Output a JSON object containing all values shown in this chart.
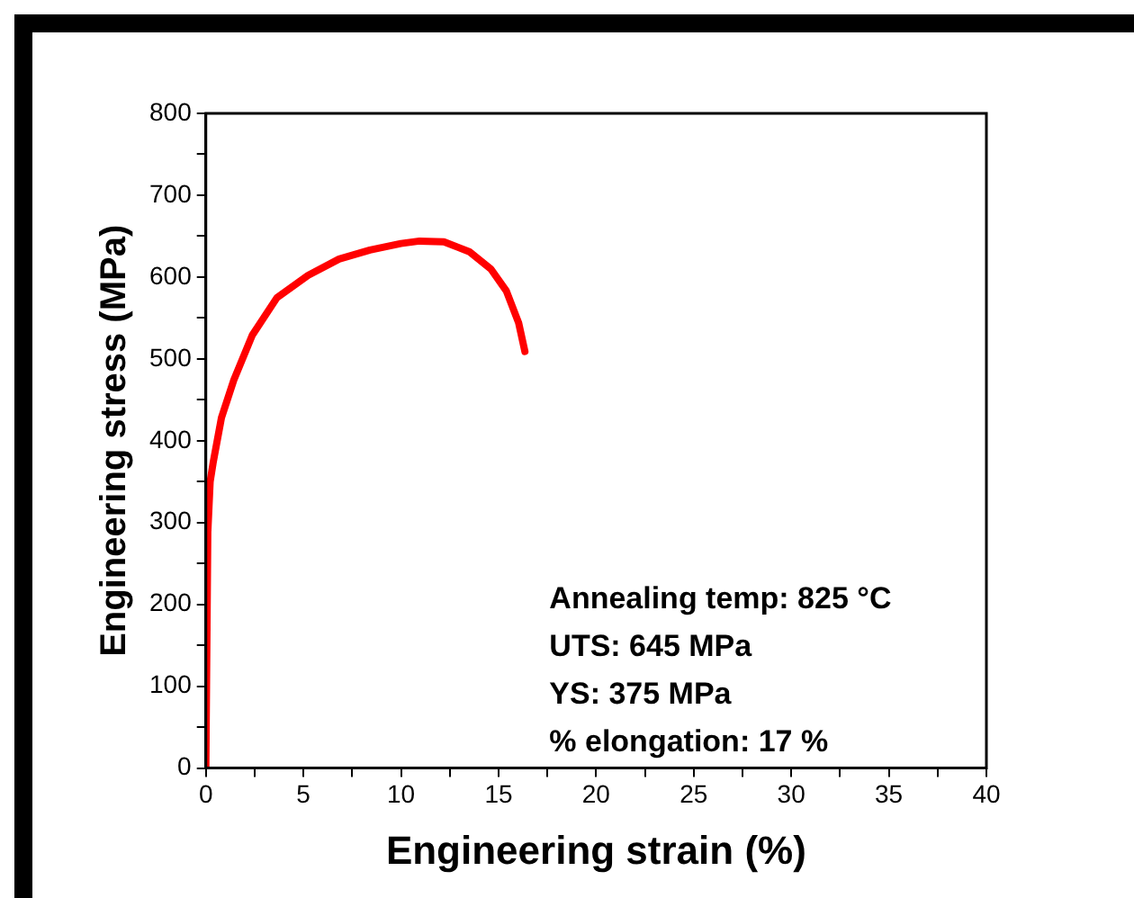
{
  "chart_data": {
    "type": "line",
    "xlabel": "Engineering strain (%)",
    "ylabel": "Engineering stress (MPa)",
    "x": [
      0,
      0.1,
      0.22,
      0.38,
      0.8,
      1.43,
      2.38,
      3.65,
      5.24,
      6.83,
      8.41,
      10,
      10.95,
      12.2,
      13.5,
      14.6,
      15.4,
      16.03,
      16.35
    ],
    "series": [
      {
        "color": "#ff0000",
        "values": [
          0,
          288,
          350,
          374,
          428,
          474,
          529,
          575,
          602,
          622,
          633,
          641,
          644,
          643,
          631,
          610,
          583,
          544,
          509
        ]
      }
    ],
    "xlim": [
      0,
      40
    ],
    "xticks": [
      0,
      {
        "value": 2.5,
        "label": null
      },
      5,
      {
        "value": 7.5,
        "label": null
      },
      10,
      {
        "value": 12.5,
        "label": null
      },
      15,
      {
        "value": 17.5,
        "label": null
      },
      20,
      {
        "value": 22.5,
        "label": null
      },
      25,
      {
        "value": 27.5,
        "label": null
      },
      30,
      {
        "value": 32.5,
        "label": null
      },
      35,
      {
        "value": 37.5,
        "label": null
      },
      40
    ],
    "ylim": [
      0,
      800
    ],
    "yticks": [
      0,
      {
        "value": 50,
        "label": null
      },
      100,
      {
        "value": 150,
        "label": null
      },
      200,
      {
        "value": 250,
        "label": null
      },
      300,
      {
        "value": 350,
        "label": null
      },
      400,
      {
        "value": 450,
        "label": null
      },
      500,
      {
        "value": 550,
        "label": null
      },
      600,
      {
        "value": 650,
        "label": null
      },
      700,
      {
        "value": 750,
        "label": null
      },
      800
    ],
    "grid": false,
    "legend": false,
    "marker": "none",
    "line_style": "solid",
    "annotations": [
      "Annealing temp: 825 °C",
      "UTS: 645 MPa",
      "YS: 375 MPa",
      "% elongation: 17 %"
    ]
  }
}
